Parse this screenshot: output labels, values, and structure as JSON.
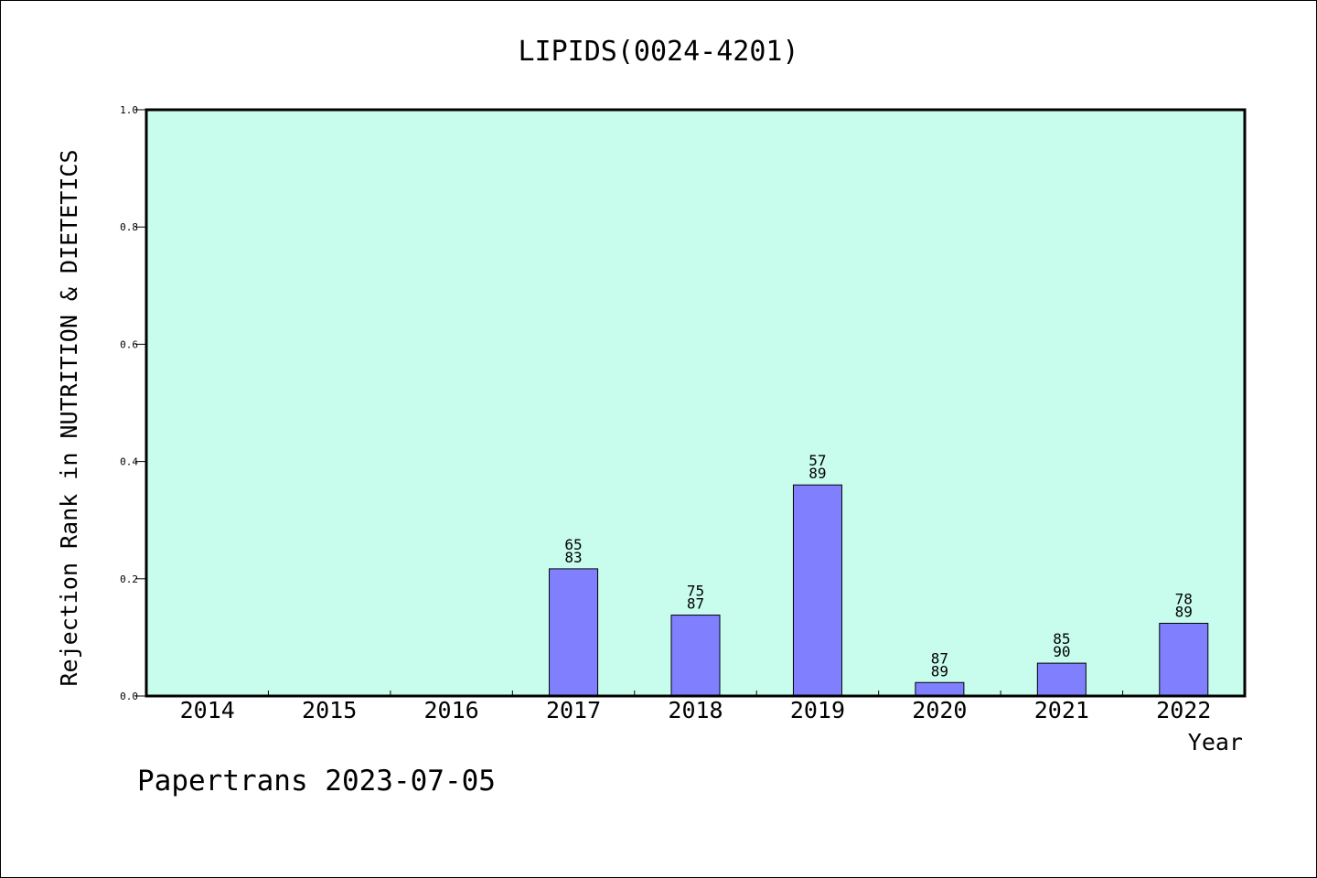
{
  "chart_data": {
    "type": "bar",
    "title": "LIPIDS(0024-4201)",
    "xlabel": "Year",
    "ylabel": "Rejection Rank in NUTRITION & DIETETICS",
    "categories": [
      "2014",
      "2015",
      "2016",
      "2017",
      "2018",
      "2019",
      "2020",
      "2021",
      "2022"
    ],
    "values": [
      null,
      null,
      null,
      0.217,
      0.138,
      0.36,
      0.023,
      0.056,
      0.124
    ],
    "bar_labels": [
      null,
      null,
      null,
      [
        "65",
        "83"
      ],
      [
        "75",
        "87"
      ],
      [
        "57",
        "89"
      ],
      [
        "87",
        "89"
      ],
      [
        "85",
        "90"
      ],
      [
        "78",
        "89"
      ]
    ],
    "yticks": [
      "0.0",
      "0.2",
      "0.4",
      "0.6",
      "0.8",
      "1.0"
    ],
    "ylim": [
      0,
      1
    ],
    "grid": false,
    "colors": {
      "plot_background": "#c8fdee",
      "bar_fill": "#8080ff",
      "bar_stroke": "#000000"
    }
  },
  "footer": {
    "text": "Papertrans 2023-07-05"
  }
}
